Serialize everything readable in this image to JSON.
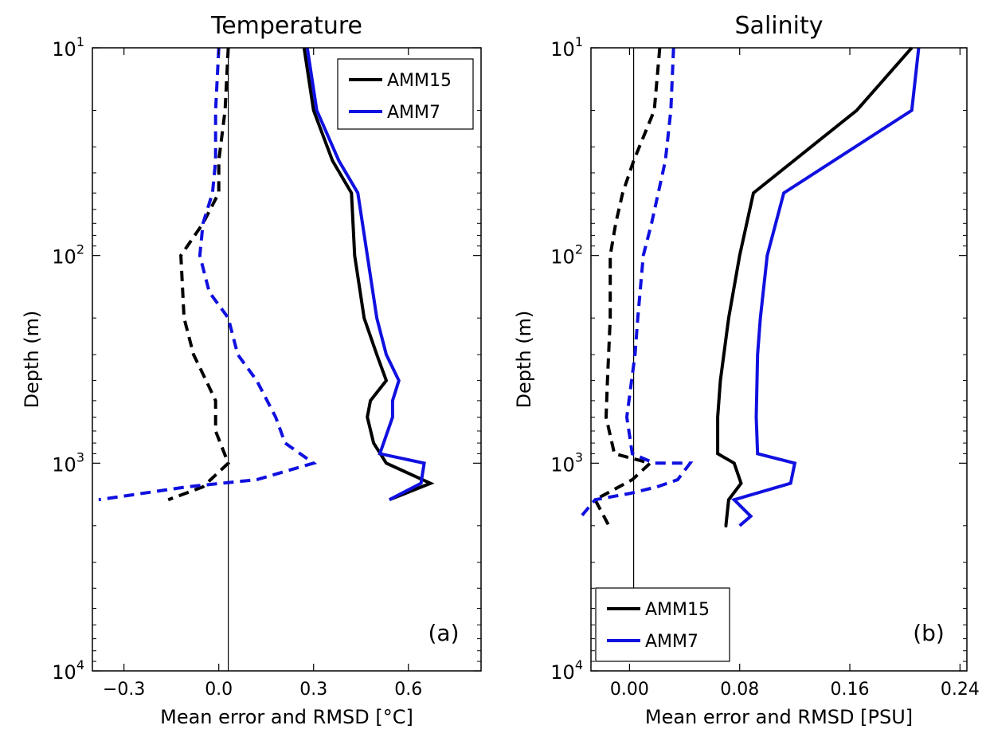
{
  "figure": {
    "panels": [
      {
        "id": "temperature",
        "title": "Temperature",
        "xlabel": "Mean error and RMSD [°C]",
        "ylabel": "Depth (m)",
        "panel_label": "(a)",
        "legend": [
          "AMM15",
          "AMM7"
        ],
        "legend_placement": "top-right",
        "colors": {
          "AMM15": "#000000",
          "AMM7": "#1010e0"
        }
      },
      {
        "id": "salinity",
        "title": "Salinity",
        "xlabel": "Mean error and RMSD [PSU]",
        "ylabel": "Depth (m)",
        "panel_label": "(b)",
        "legend": [
          "AMM15",
          "AMM7"
        ],
        "legend_placement": "bottom-left",
        "colors": {
          "AMM15": "#000000",
          "AMM7": "#1010e0"
        }
      }
    ]
  },
  "chart_data": [
    {
      "type": "line",
      "title": "Temperature",
      "xlabel": "Mean error and RMSD [°C]",
      "ylabel": "Depth (m)",
      "xlim": [
        -0.4,
        0.83
      ],
      "ylim": [
        10,
        10000
      ],
      "yscale": "log",
      "yaxis_inverted": true,
      "xticks": [
        -0.3,
        0.0,
        0.3,
        0.6
      ],
      "xtick_labels": [
        "−0.3",
        "0.0",
        "0.3",
        "0.6"
      ],
      "yticks": [
        10,
        100,
        1000,
        10000
      ],
      "ytick_bases": [
        "10",
        "10",
        "10",
        "10"
      ],
      "ytick_exponents": [
        "1",
        "2",
        "3",
        "4"
      ],
      "reference_line_x": 0.03,
      "reference_line_depth_range": [
        10,
        10000
      ],
      "series": [
        {
          "name": "AMM15",
          "stat": "RMSD",
          "style": "solid",
          "color": "#000000",
          "points": [
            [
              0.27,
              10
            ],
            [
              0.3,
              20
            ],
            [
              0.36,
              35
            ],
            [
              0.42,
              50
            ],
            [
              0.43,
              100
            ],
            [
              0.46,
              200
            ],
            [
              0.5,
              300
            ],
            [
              0.53,
              400
            ],
            [
              0.48,
              500
            ],
            [
              0.47,
              600
            ],
            [
              0.49,
              800
            ],
            [
              0.53,
              1000
            ],
            [
              0.67,
              1250
            ],
            [
              0.54,
              1500
            ]
          ]
        },
        {
          "name": "AMM7",
          "stat": "RMSD",
          "style": "solid",
          "color": "#1010e0",
          "points": [
            [
              0.28,
              10
            ],
            [
              0.31,
              20
            ],
            [
              0.38,
              35
            ],
            [
              0.44,
              50
            ],
            [
              0.47,
              100
            ],
            [
              0.5,
              200
            ],
            [
              0.53,
              300
            ],
            [
              0.57,
              400
            ],
            [
              0.55,
              500
            ],
            [
              0.55,
              600
            ],
            [
              0.51,
              900
            ],
            [
              0.65,
              1000
            ],
            [
              0.64,
              1250
            ],
            [
              0.54,
              1500
            ]
          ]
        },
        {
          "name": "AMM15",
          "stat": "Mean error",
          "style": "dashed",
          "color": "#000000",
          "points": [
            [
              0.03,
              10
            ],
            [
              0.02,
              20
            ],
            [
              0.0,
              35
            ],
            [
              0.0,
              50
            ],
            [
              -0.05,
              70
            ],
            [
              -0.12,
              100
            ],
            [
              -0.11,
              200
            ],
            [
              -0.08,
              300
            ],
            [
              -0.04,
              400
            ],
            [
              -0.01,
              500
            ],
            [
              -0.01,
              700
            ],
            [
              0.03,
              1000
            ],
            [
              -0.05,
              1300
            ],
            [
              -0.16,
              1500
            ]
          ]
        },
        {
          "name": "AMM7",
          "stat": "Mean error",
          "style": "dashed",
          "color": "#1010e0",
          "points": [
            [
              0.0,
              10
            ],
            [
              -0.01,
              20
            ],
            [
              -0.01,
              35
            ],
            [
              -0.02,
              50
            ],
            [
              -0.05,
              70
            ],
            [
              -0.06,
              100
            ],
            [
              -0.03,
              150
            ],
            [
              0.03,
              200
            ],
            [
              0.06,
              300
            ],
            [
              0.12,
              400
            ],
            [
              0.18,
              600
            ],
            [
              0.21,
              800
            ],
            [
              0.3,
              1000
            ],
            [
              0.12,
              1200
            ],
            [
              -0.1,
              1300
            ],
            [
              -0.38,
              1500
            ]
          ]
        }
      ]
    },
    {
      "type": "line",
      "title": "Salinity",
      "xlabel": "Mean error and RMSD [PSU]",
      "ylabel": "Depth (m)",
      "xlim": [
        -0.028,
        0.245
      ],
      "ylim": [
        10,
        10000
      ],
      "yscale": "log",
      "yaxis_inverted": true,
      "xticks": [
        0.0,
        0.08,
        0.16,
        0.24
      ],
      "xtick_labels": [
        "0.00",
        "0.08",
        "0.16",
        "0.24"
      ],
      "yticks": [
        10,
        100,
        1000,
        10000
      ],
      "ytick_bases": [
        "10",
        "10",
        "10",
        "10"
      ],
      "ytick_exponents": [
        "1",
        "2",
        "3",
        "4"
      ],
      "reference_line_x": 0.003,
      "reference_line_depth_range": [
        10,
        4000
      ],
      "series": [
        {
          "name": "AMM15",
          "stat": "RMSD",
          "style": "solid",
          "color": "#000000",
          "points": [
            [
              0.205,
              10
            ],
            [
              0.165,
              20
            ],
            [
              0.09,
              50
            ],
            [
              0.08,
              100
            ],
            [
              0.072,
              200
            ],
            [
              0.066,
              400
            ],
            [
              0.064,
              600
            ],
            [
              0.064,
              900
            ],
            [
              0.076,
              1000
            ],
            [
              0.081,
              1250
            ],
            [
              0.072,
              1500
            ],
            [
              0.07,
              2000
            ],
            [
              0.069,
              2000
            ]
          ]
        },
        {
          "name": "AMM7",
          "stat": "RMSD",
          "style": "solid",
          "color": "#1010e0",
          "points": [
            [
              0.21,
              10
            ],
            [
              0.205,
              20
            ],
            [
              0.112,
              50
            ],
            [
              0.1,
              100
            ],
            [
              0.095,
              200
            ],
            [
              0.093,
              300
            ],
            [
              0.092,
              600
            ],
            [
              0.093,
              900
            ],
            [
              0.12,
              1000
            ],
            [
              0.117,
              1250
            ],
            [
              0.076,
              1500
            ],
            [
              0.088,
              1800
            ],
            [
              0.08,
              2000
            ]
          ]
        },
        {
          "name": "AMM15",
          "stat": "Mean error",
          "style": "dashed",
          "color": "#000000",
          "points": [
            [
              0.022,
              10
            ],
            [
              0.018,
              20
            ],
            [
              0.012,
              25
            ],
            [
              0.003,
              35
            ],
            [
              -0.005,
              50
            ],
            [
              -0.01,
              70
            ],
            [
              -0.014,
              100
            ],
            [
              -0.014,
              200
            ],
            [
              -0.016,
              400
            ],
            [
              -0.017,
              600
            ],
            [
              -0.011,
              900
            ],
            [
              0.015,
              1000
            ],
            [
              0.002,
              1200
            ],
            [
              -0.025,
              1500
            ],
            [
              -0.015,
              2000
            ]
          ]
        },
        {
          "name": "AMM7",
          "stat": "Mean error",
          "style": "dashed",
          "color": "#1010e0",
          "points": [
            [
              0.032,
              10
            ],
            [
              0.03,
              20
            ],
            [
              0.026,
              35
            ],
            [
              0.016,
              70
            ],
            [
              0.01,
              100
            ],
            [
              0.006,
              200
            ],
            [
              0.004,
              300
            ],
            [
              -0.002,
              600
            ],
            [
              0.002,
              900
            ],
            [
              0.018,
              1000
            ],
            [
              0.044,
              1000
            ],
            [
              0.035,
              1200
            ],
            [
              0.02,
              1300
            ],
            [
              0.0,
              1400
            ],
            [
              -0.025,
              1500
            ],
            [
              -0.035,
              1800
            ]
          ]
        }
      ]
    }
  ]
}
